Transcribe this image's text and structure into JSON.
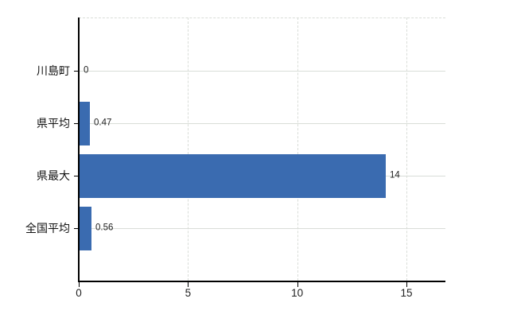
{
  "chart_data": {
    "type": "bar",
    "orientation": "horizontal",
    "title": "",
    "xlabel": "",
    "ylabel": "",
    "categories": [
      "川島町",
      "県平均",
      "県最大",
      "全国平均"
    ],
    "values": [
      0,
      0.47,
      14,
      0.56
    ],
    "value_labels": [
      "0",
      "0.47",
      "14",
      "0.56"
    ],
    "x_ticks": [
      0,
      5,
      10,
      15
    ],
    "x_tick_labels": [
      "0",
      "5",
      "10",
      "15"
    ],
    "xlim": [
      0,
      16.8
    ],
    "grid": true,
    "legend": "none",
    "colors": {
      "bar": "#3a6bb0",
      "gridline": "#d9ddd8",
      "axis": "#000000",
      "text": "#222222"
    }
  }
}
